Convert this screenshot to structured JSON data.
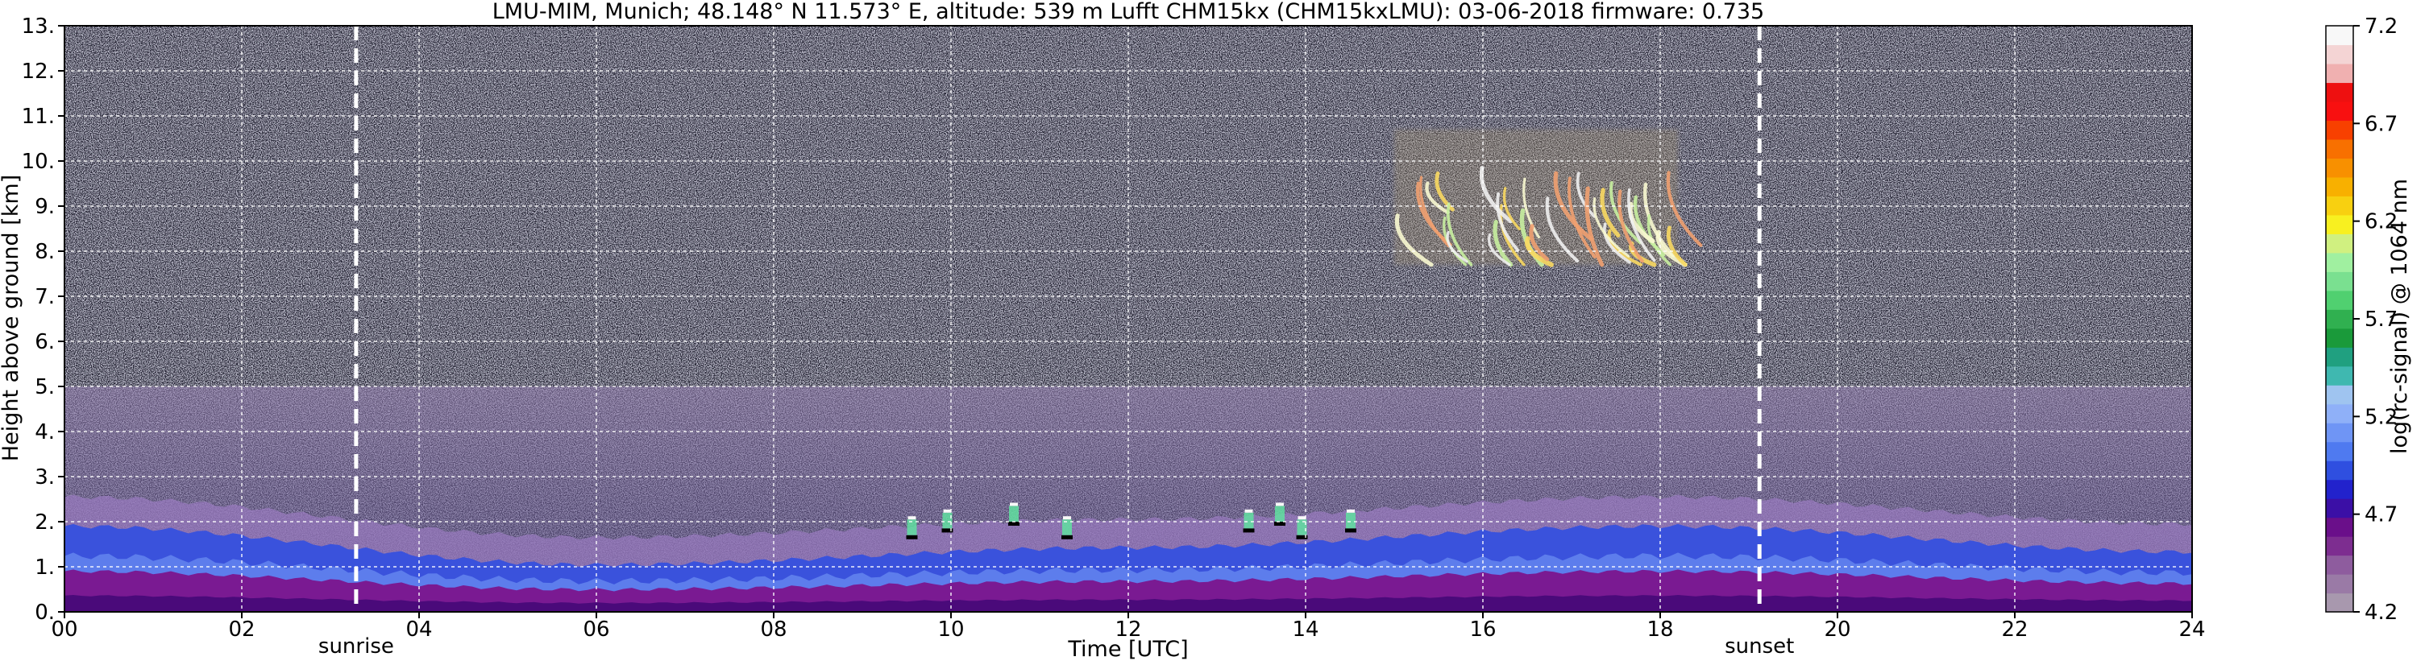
{
  "chart_data": {
    "type": "heatmap",
    "title": "LMU-MIM, Munich; 48.148° N 11.573° E, altitude: 539 m    Lufft CHM15kx (CHM15kxLMU): 03-06-2018    firmware: 0.735",
    "xlabel": "Time [UTC]",
    "ylabel": "Height above ground [km]",
    "xlim": [
      0,
      24
    ],
    "ylim": [
      0,
      13
    ],
    "x_ticks": [
      "00",
      "02",
      "04",
      "06",
      "08",
      "10",
      "12",
      "14",
      "16",
      "18",
      "20",
      "22",
      "24"
    ],
    "y_ticks": [
      "0.",
      "1.",
      "2.",
      "3.",
      "4.",
      "5.",
      "6.",
      "7.",
      "8.",
      "9.",
      "10.",
      "11.",
      "12.",
      "13."
    ],
    "grid": true,
    "annotations": [
      {
        "x": 3.29,
        "label": "sunrise"
      },
      {
        "x": 19.12,
        "label": "sunset"
      }
    ],
    "colorbar": {
      "label": "log(rc-signal) @ 1064 nm",
      "range": [
        4.2,
        7.2
      ],
      "ticks": [
        "4.2",
        "4.7",
        "5.2",
        "5.7",
        "6.2",
        "6.7",
        "7.2"
      ],
      "colors": [
        "#a898ae",
        "#9a7aa6",
        "#8e5c9e",
        "#7d2d90",
        "#6a0f8a",
        "#3b0fa6",
        "#2222cc",
        "#2f4fe0",
        "#4f7af0",
        "#6f95f5",
        "#8fb0f8",
        "#9fc4f0",
        "#3fb8b0",
        "#20a080",
        "#1a9a3a",
        "#30b050",
        "#50d070",
        "#7ae090",
        "#a0f0a0",
        "#d0f080",
        "#f8f020",
        "#f8d010",
        "#f8b000",
        "#f89000",
        "#f87000",
        "#f84000",
        "#f81010",
        "#ee1010",
        "#f0b0b0",
        "#f4d4d4",
        "#f8f8f8"
      ]
    },
    "layers": [
      {
        "name": "boundary layer",
        "x": [
          0,
          24
        ],
        "top_km": [
          2.0,
          1.1,
          1.5,
          2.0,
          1.4
        ]
      },
      {
        "name": "cirrus",
        "x": [
          15.0,
          18.2
        ],
        "height_km": [
          7.7,
          9.5
        ]
      },
      {
        "name": "low clouds",
        "x": [
          9.5,
          14.6
        ],
        "height_km": [
          1.7,
          2.4
        ]
      }
    ]
  }
}
